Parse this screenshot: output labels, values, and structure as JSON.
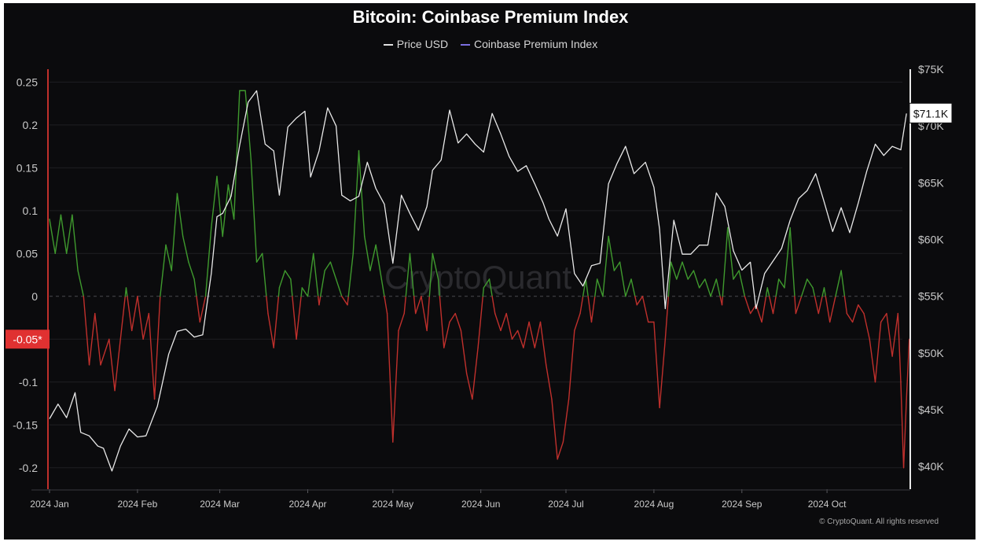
{
  "title": "Bitcoin: Coinbase Premium Index",
  "watermark": "CryptoQuant",
  "copyright": "© CryptoQuant. All rights reserved",
  "legend": [
    {
      "name": "Price USD",
      "color": "#e0e0e0"
    },
    {
      "name": "Coinbase Premium Index",
      "color": "#7b6fe0"
    }
  ],
  "colors": {
    "background": "#0b0b0d",
    "price_line": "#e8e8e8",
    "premium_positive": "#3f9a2e",
    "premium_negative": "#c0302c",
    "left_axis_line": "#c0302c",
    "right_axis_line": "#e8e8e8",
    "grid": "#1f1f23",
    "axis_text": "#c9c9c9",
    "left_badge_bg": "#e03131",
    "right_badge_bg": "#ffffff"
  },
  "badges": {
    "left": "-0.05*",
    "right": "$71.1K"
  },
  "chart_data": {
    "type": "line",
    "x_ticks": [
      "2024 Jan",
      "2024 Feb",
      "2024 Mar",
      "2024 Apr",
      "2024 May",
      "2024 Jun",
      "2024 Jul",
      "2024 Aug",
      "2024 Sep",
      "2024 Oct"
    ],
    "y_left_ticks": [
      "0.25",
      "0.2",
      "0.15",
      "0.1",
      "0.05",
      "0",
      "-0.05",
      "-0.1",
      "-0.15",
      "-0.2"
    ],
    "y_left_tick_values": [
      0.25,
      0.2,
      0.15,
      0.1,
      0.05,
      0,
      -0.05,
      -0.1,
      -0.15,
      -0.2
    ],
    "y_right_ticks": [
      "$75K",
      "$70K",
      "$65K",
      "$60K",
      "$55K",
      "$50K",
      "$45K",
      "$40K"
    ],
    "y_right_tick_values": [
      75000,
      70000,
      65000,
      60000,
      55000,
      50000,
      45000,
      40000
    ],
    "ylim_left": [
      -0.225,
      0.265
    ],
    "ylim_right": [
      38000,
      75000
    ],
    "zero_line": "dashed",
    "legend_position": "top-center",
    "series": [
      {
        "name": "Price USD",
        "axis": "right",
        "points": [
          [
            "2024-01-01",
            44200
          ],
          [
            "2024-01-04",
            45500
          ],
          [
            "2024-01-07",
            44300
          ],
          [
            "2024-01-10",
            46500
          ],
          [
            "2024-01-12",
            43000
          ],
          [
            "2024-01-15",
            42700
          ],
          [
            "2024-01-18",
            41800
          ],
          [
            "2024-01-20",
            41600
          ],
          [
            "2024-01-23",
            39600
          ],
          [
            "2024-01-26",
            41800
          ],
          [
            "2024-01-29",
            43300
          ],
          [
            "2024-02-01",
            42600
          ],
          [
            "2024-02-04",
            42700
          ],
          [
            "2024-02-08",
            45300
          ],
          [
            "2024-02-12",
            49900
          ],
          [
            "2024-02-15",
            51900
          ],
          [
            "2024-02-18",
            52100
          ],
          [
            "2024-02-21",
            51400
          ],
          [
            "2024-02-24",
            51600
          ],
          [
            "2024-02-27",
            57000
          ],
          [
            "2024-02-29",
            62000
          ],
          [
            "2024-03-02",
            62300
          ],
          [
            "2024-03-05",
            63800
          ],
          [
            "2024-03-08",
            68300
          ],
          [
            "2024-03-11",
            72100
          ],
          [
            "2024-03-14",
            73100
          ],
          [
            "2024-03-17",
            68400
          ],
          [
            "2024-03-20",
            67800
          ],
          [
            "2024-03-22",
            63900
          ],
          [
            "2024-03-25",
            69900
          ],
          [
            "2024-03-28",
            70700
          ],
          [
            "2024-03-31",
            71300
          ],
          [
            "2024-04-02",
            65500
          ],
          [
            "2024-04-05",
            67800
          ],
          [
            "2024-04-08",
            71600
          ],
          [
            "2024-04-11",
            70000
          ],
          [
            "2024-04-13",
            63900
          ],
          [
            "2024-04-16",
            63400
          ],
          [
            "2024-04-19",
            63800
          ],
          [
            "2024-04-22",
            66800
          ],
          [
            "2024-04-25",
            64500
          ],
          [
            "2024-04-28",
            63100
          ],
          [
            "2024-05-01",
            57900
          ],
          [
            "2024-05-04",
            63900
          ],
          [
            "2024-05-07",
            62300
          ],
          [
            "2024-05-10",
            60800
          ],
          [
            "2024-05-13",
            62900
          ],
          [
            "2024-05-15",
            66100
          ],
          [
            "2024-05-18",
            67000
          ],
          [
            "2024-05-21",
            71400
          ],
          [
            "2024-05-24",
            68500
          ],
          [
            "2024-05-27",
            69300
          ],
          [
            "2024-05-30",
            68400
          ],
          [
            "2024-06-02",
            67700
          ],
          [
            "2024-06-05",
            71100
          ],
          [
            "2024-06-08",
            69300
          ],
          [
            "2024-06-11",
            67300
          ],
          [
            "2024-06-14",
            66000
          ],
          [
            "2024-06-17",
            66500
          ],
          [
            "2024-06-20",
            64900
          ],
          [
            "2024-06-23",
            63200
          ],
          [
            "2024-06-25",
            61800
          ],
          [
            "2024-06-28",
            60300
          ],
          [
            "2024-07-01",
            62700
          ],
          [
            "2024-07-04",
            57000
          ],
          [
            "2024-07-07",
            55900
          ],
          [
            "2024-07-10",
            57700
          ],
          [
            "2024-07-13",
            57900
          ],
          [
            "2024-07-16",
            64900
          ],
          [
            "2024-07-19",
            66700
          ],
          [
            "2024-07-22",
            68200
          ],
          [
            "2024-07-25",
            65800
          ],
          [
            "2024-07-29",
            66800
          ],
          [
            "2024-08-01",
            64600
          ],
          [
            "2024-08-03",
            60900
          ],
          [
            "2024-08-05",
            53900
          ],
          [
            "2024-08-08",
            61700
          ],
          [
            "2024-08-11",
            58700
          ],
          [
            "2024-08-14",
            58700
          ],
          [
            "2024-08-17",
            59500
          ],
          [
            "2024-08-20",
            59500
          ],
          [
            "2024-08-23",
            64100
          ],
          [
            "2024-08-26",
            62900
          ],
          [
            "2024-08-29",
            59000
          ],
          [
            "2024-09-01",
            57300
          ],
          [
            "2024-09-04",
            58000
          ],
          [
            "2024-09-06",
            53900
          ],
          [
            "2024-09-09",
            57000
          ],
          [
            "2024-09-12",
            58100
          ],
          [
            "2024-09-15",
            59200
          ],
          [
            "2024-09-18",
            61700
          ],
          [
            "2024-09-21",
            63600
          ],
          [
            "2024-09-24",
            64300
          ],
          [
            "2024-09-27",
            65800
          ],
          [
            "2024-09-30",
            63300
          ],
          [
            "2024-10-03",
            60700
          ],
          [
            "2024-10-06",
            62800
          ],
          [
            "2024-10-09",
            60600
          ],
          [
            "2024-10-12",
            63200
          ],
          [
            "2024-10-15",
            66000
          ],
          [
            "2024-10-18",
            68400
          ],
          [
            "2024-10-21",
            67400
          ],
          [
            "2024-10-24",
            68200
          ],
          [
            "2024-10-27",
            67900
          ],
          [
            "2024-10-29",
            71100
          ]
        ]
      },
      {
        "name": "Coinbase Premium Index",
        "axis": "left",
        "points": [
          [
            "2024-01-01",
            0.09
          ],
          [
            "2024-01-03",
            0.05
          ],
          [
            "2024-01-05",
            0.095
          ],
          [
            "2024-01-07",
            0.05
          ],
          [
            "2024-01-09",
            0.095
          ],
          [
            "2024-01-11",
            0.03
          ],
          [
            "2024-01-13",
            0.0
          ],
          [
            "2024-01-15",
            -0.08
          ],
          [
            "2024-01-17",
            -0.02
          ],
          [
            "2024-01-19",
            -0.08
          ],
          [
            "2024-01-22",
            -0.05
          ],
          [
            "2024-01-24",
            -0.11
          ],
          [
            "2024-01-26",
            -0.05
          ],
          [
            "2024-01-28",
            0.01
          ],
          [
            "2024-01-30",
            -0.04
          ],
          [
            "2024-02-01",
            0.0
          ],
          [
            "2024-02-03",
            -0.05
          ],
          [
            "2024-02-05",
            -0.02
          ],
          [
            "2024-02-07",
            -0.12
          ],
          [
            "2024-02-09",
            0.0
          ],
          [
            "2024-02-11",
            0.06
          ],
          [
            "2024-02-13",
            0.03
          ],
          [
            "2024-02-15",
            0.12
          ],
          [
            "2024-02-17",
            0.07
          ],
          [
            "2024-02-19",
            0.04
          ],
          [
            "2024-02-21",
            0.02
          ],
          [
            "2024-02-23",
            -0.03
          ],
          [
            "2024-02-25",
            0.0
          ],
          [
            "2024-02-27",
            0.08
          ],
          [
            "2024-02-29",
            0.14
          ],
          [
            "2024-03-02",
            0.07
          ],
          [
            "2024-03-04",
            0.13
          ],
          [
            "2024-03-06",
            0.09
          ],
          [
            "2024-03-08",
            0.24
          ],
          [
            "2024-03-10",
            0.24
          ],
          [
            "2024-03-12",
            0.16
          ],
          [
            "2024-03-14",
            0.04
          ],
          [
            "2024-03-16",
            0.05
          ],
          [
            "2024-03-18",
            -0.02
          ],
          [
            "2024-03-20",
            -0.06
          ],
          [
            "2024-03-22",
            0.01
          ],
          [
            "2024-03-24",
            0.03
          ],
          [
            "2024-03-26",
            0.02
          ],
          [
            "2024-03-28",
            -0.05
          ],
          [
            "2024-03-30",
            0.01
          ],
          [
            "2024-04-01",
            0.0
          ],
          [
            "2024-04-03",
            0.05
          ],
          [
            "2024-04-05",
            -0.01
          ],
          [
            "2024-04-07",
            0.03
          ],
          [
            "2024-04-09",
            0.04
          ],
          [
            "2024-04-11",
            0.02
          ],
          [
            "2024-04-13",
            0.0
          ],
          [
            "2024-04-15",
            -0.01
          ],
          [
            "2024-04-17",
            0.05
          ],
          [
            "2024-04-19",
            0.17
          ],
          [
            "2024-04-21",
            0.07
          ],
          [
            "2024-04-23",
            0.03
          ],
          [
            "2024-04-25",
            0.06
          ],
          [
            "2024-04-27",
            0.02
          ],
          [
            "2024-04-29",
            -0.02
          ],
          [
            "2024-05-01",
            -0.17
          ],
          [
            "2024-05-03",
            -0.04
          ],
          [
            "2024-05-05",
            -0.02
          ],
          [
            "2024-05-07",
            0.05
          ],
          [
            "2024-05-09",
            -0.02
          ],
          [
            "2024-05-11",
            0.0
          ],
          [
            "2024-05-13",
            -0.04
          ],
          [
            "2024-05-15",
            0.05
          ],
          [
            "2024-05-17",
            0.02
          ],
          [
            "2024-05-19",
            -0.06
          ],
          [
            "2024-05-21",
            -0.03
          ],
          [
            "2024-05-23",
            -0.02
          ],
          [
            "2024-05-25",
            -0.04
          ],
          [
            "2024-05-27",
            -0.09
          ],
          [
            "2024-05-29",
            -0.12
          ],
          [
            "2024-05-31",
            -0.06
          ],
          [
            "2024-06-02",
            0.01
          ],
          [
            "2024-06-04",
            0.02
          ],
          [
            "2024-06-06",
            -0.02
          ],
          [
            "2024-06-08",
            -0.04
          ],
          [
            "2024-06-10",
            -0.02
          ],
          [
            "2024-06-12",
            -0.05
          ],
          [
            "2024-06-14",
            -0.04
          ],
          [
            "2024-06-16",
            -0.06
          ],
          [
            "2024-06-18",
            -0.03
          ],
          [
            "2024-06-20",
            -0.06
          ],
          [
            "2024-06-22",
            -0.03
          ],
          [
            "2024-06-24",
            -0.08
          ],
          [
            "2024-06-26",
            -0.12
          ],
          [
            "2024-06-28",
            -0.19
          ],
          [
            "2024-06-30",
            -0.17
          ],
          [
            "2024-07-02",
            -0.12
          ],
          [
            "2024-07-04",
            -0.04
          ],
          [
            "2024-07-06",
            -0.02
          ],
          [
            "2024-07-08",
            0.02
          ],
          [
            "2024-07-10",
            -0.03
          ],
          [
            "2024-07-12",
            0.02
          ],
          [
            "2024-07-14",
            0.0
          ],
          [
            "2024-07-16",
            0.07
          ],
          [
            "2024-07-18",
            0.03
          ],
          [
            "2024-07-20",
            0.04
          ],
          [
            "2024-07-22",
            0.0
          ],
          [
            "2024-07-24",
            0.02
          ],
          [
            "2024-07-26",
            -0.01
          ],
          [
            "2024-07-28",
            0.0
          ],
          [
            "2024-07-30",
            -0.03
          ],
          [
            "2024-08-01",
            -0.03
          ],
          [
            "2024-08-03",
            -0.13
          ],
          [
            "2024-08-05",
            -0.05
          ],
          [
            "2024-08-07",
            0.04
          ],
          [
            "2024-08-09",
            0.02
          ],
          [
            "2024-08-11",
            0.04
          ],
          [
            "2024-08-13",
            0.02
          ],
          [
            "2024-08-15",
            0.03
          ],
          [
            "2024-08-17",
            0.01
          ],
          [
            "2024-08-19",
            0.02
          ],
          [
            "2024-08-21",
            0.0
          ],
          [
            "2024-08-23",
            0.02
          ],
          [
            "2024-08-25",
            -0.01
          ],
          [
            "2024-08-27",
            0.08
          ],
          [
            "2024-08-29",
            0.02
          ],
          [
            "2024-08-31",
            0.03
          ],
          [
            "2024-09-02",
            0.0
          ],
          [
            "2024-09-04",
            -0.02
          ],
          [
            "2024-09-06",
            -0.01
          ],
          [
            "2024-09-08",
            -0.03
          ],
          [
            "2024-09-10",
            0.01
          ],
          [
            "2024-09-12",
            -0.02
          ],
          [
            "2024-09-14",
            0.02
          ],
          [
            "2024-09-16",
            0.01
          ],
          [
            "2024-09-18",
            0.08
          ],
          [
            "2024-09-20",
            -0.02
          ],
          [
            "2024-09-22",
            0.0
          ],
          [
            "2024-09-24",
            0.02
          ],
          [
            "2024-09-26",
            0.01
          ],
          [
            "2024-09-28",
            -0.02
          ],
          [
            "2024-09-30",
            0.01
          ],
          [
            "2024-10-02",
            -0.03
          ],
          [
            "2024-10-04",
            0.0
          ],
          [
            "2024-10-06",
            0.03
          ],
          [
            "2024-10-08",
            -0.02
          ],
          [
            "2024-10-10",
            -0.03
          ],
          [
            "2024-10-12",
            -0.01
          ],
          [
            "2024-10-14",
            -0.02
          ],
          [
            "2024-10-16",
            -0.05
          ],
          [
            "2024-10-18",
            -0.1
          ],
          [
            "2024-10-20",
            -0.03
          ],
          [
            "2024-10-22",
            -0.02
          ],
          [
            "2024-10-24",
            -0.07
          ],
          [
            "2024-10-26",
            -0.02
          ],
          [
            "2024-10-27",
            -0.1
          ],
          [
            "2024-10-28",
            -0.2
          ],
          [
            "2024-10-29",
            -0.12
          ],
          [
            "2024-10-30",
            -0.05
          ]
        ]
      }
    ]
  }
}
